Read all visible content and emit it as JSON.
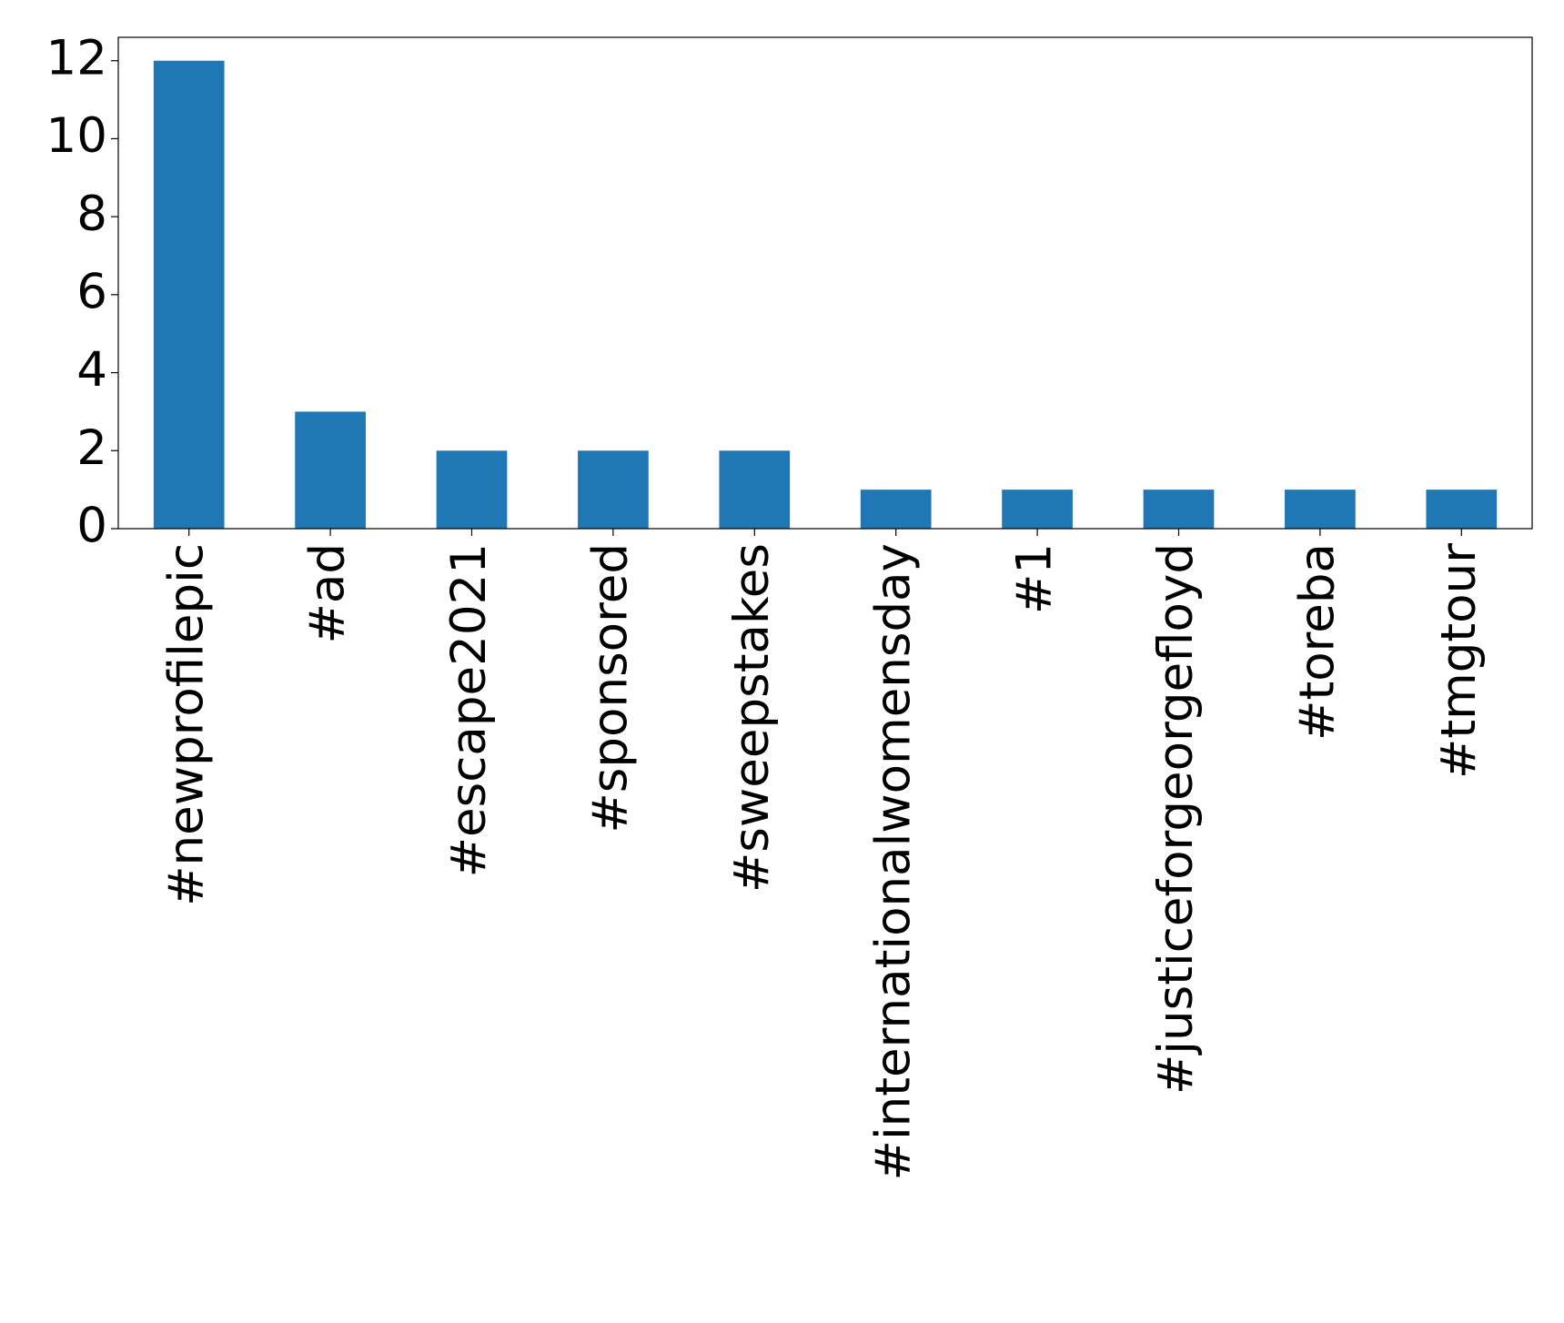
{
  "chart_data": {
    "type": "bar",
    "categories": [
      "#newprofilepic",
      "#ad",
      "#escape2021",
      "#sponsored",
      "#sweepstakes",
      "#internationalwomensday",
      "#1",
      "#justiceforgeorgefloyd",
      "#toreba",
      "#tmgtour"
    ],
    "values": [
      12,
      3,
      2,
      2,
      2,
      1,
      1,
      1,
      1,
      1
    ],
    "color": "#1f77b4",
    "ylim": [
      0,
      12.6
    ],
    "yticks": [
      0,
      2,
      4,
      6,
      8,
      10,
      12
    ],
    "grid": false
  }
}
